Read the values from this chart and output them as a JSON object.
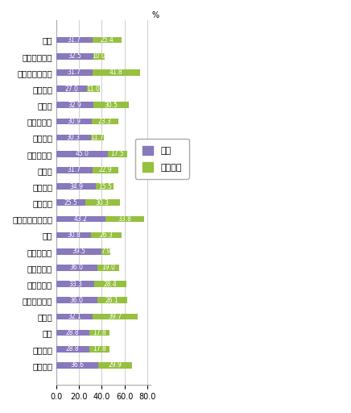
{
  "categories": [
    "日本",
    "アルゼンチン",
    "オーストラリア",
    "ブラジル",
    "カナダ",
    "コロンビア",
    "エジプト",
    "エチオピア",
    "インド",
    "レバノン",
    "メキシコ",
    "ニュージーランド",
    "北米",
    "フィリピン",
    "ポルトガル",
    "南アフリカ",
    "スウェーデン",
    "トルコ",
    "英国",
    "アメリカ",
    "ベトナム"
  ],
  "poverty": [
    31.7,
    32.5,
    31.7,
    27.0,
    32.9,
    30.9,
    30.3,
    45.0,
    31.7,
    34.9,
    25.5,
    43.2,
    30.8,
    39.5,
    36.0,
    33.3,
    36.0,
    32.1,
    28.8,
    28.8,
    36.6
  ],
  "environment": [
    25.4,
    10.0,
    41.8,
    11.0,
    30.5,
    23.3,
    11.7,
    17.5,
    22.9,
    15.5,
    30.3,
    33.8,
    26.3,
    7.9,
    19.0,
    28.4,
    26.1,
    39.7,
    17.8,
    17.8,
    29.9
  ],
  "poverty_color": "#8878BC",
  "environment_color": "#96C040",
  "legend_poverty": "貧困",
  "legend_environment": "環境悪化",
  "xlim": [
    0,
    83
  ],
  "xticks": [
    0.0,
    20.0,
    40.0,
    60.0,
    80.0
  ],
  "background_color": "#FFFFFF",
  "bar_height": 0.38,
  "figsize": [
    4.36,
    5.12
  ],
  "dpi": 100
}
